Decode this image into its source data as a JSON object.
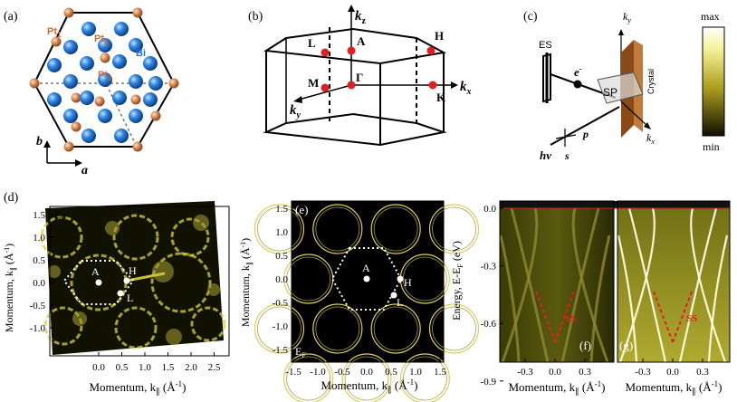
{
  "figure": {
    "panel_a": {
      "label": "(a)",
      "pt1": "Pt",
      "pt1_sub": "1",
      "pt2": "Pt",
      "pt2_sub": "2",
      "pt3": "Pt",
      "pt3_sub": "3",
      "bi": "Bi",
      "axis_b": "b",
      "axis_a": "a"
    },
    "panel_b": {
      "label": "(b)",
      "kz": "k",
      "kz_sub": "z",
      "kx": "k",
      "kx_sub": "x",
      "ky": "k",
      "ky_sub": "y",
      "points": [
        "L",
        "A",
        "H",
        "M",
        "Γ",
        "K"
      ]
    },
    "panel_c": {
      "label": "(c)",
      "es": "ES",
      "electron": "e",
      "electron_sup": "-",
      "sp": "SP",
      "crystal": "Crystal",
      "ky": "k",
      "ky_sub": "y",
      "kx": "k",
      "kx_sub": "x",
      "hv": "hν",
      "p": "p",
      "s": "s",
      "colorbar_max": "max",
      "colorbar_min": "min"
    },
    "panel_d": {
      "label": "(d)",
      "ef": "E",
      "ef_sub": "F",
      "ylabel": "Momentum, k",
      "ylabel_unit": "(Å",
      "xlabel": "Momentum, k",
      "xlabel_unit": "(Å",
      "yticks": [
        "1.5",
        "1.0",
        "0.5",
        "0.0",
        "-0.5",
        "-1.0"
      ],
      "xticks": [
        "0.0",
        "0.5",
        "1.0",
        "1.5",
        "2.0",
        "2.5"
      ],
      "points": [
        "A",
        "H",
        "L"
      ]
    },
    "panel_e": {
      "label": "(e)",
      "ef": "E",
      "ef_sub": "F",
      "ylabel": "Momentum, k",
      "ylabel_unit": "(Å",
      "xlabel": "Momentum, k",
      "xlabel_unit": "(Å",
      "yticks": [
        "1.5",
        "1.0",
        "0.5",
        "0.0",
        "-0.5",
        "-1.0",
        "-1.5"
      ],
      "xticks": [
        "-1.5",
        "-1.0",
        "-0.5",
        "0.0",
        "0.5",
        "1.0",
        "1.5"
      ],
      "points": [
        "A",
        "H",
        "L"
      ]
    },
    "panel_fg": {
      "label_f": "(f)",
      "label_g": "(g)",
      "ylabel": "Energy, E-E",
      "ylabel_sub": "F",
      "ylabel_unit": "(eV)",
      "xlabel": "Momentum, k",
      "xlabel_unit": "(Å",
      "yticks": [
        "0.0",
        "-0.3",
        "-0.6",
        "-0.9"
      ],
      "xticks_f": [
        "-0.3",
        "0.0",
        "0.3"
      ],
      "xticks_g": [
        "-0.3",
        "0.0",
        "0.3"
      ],
      "ss_f": "SS",
      "ss_g": "SS"
    }
  },
  "colors": {
    "pt": "#c8703c",
    "bi": "#1f6fcf",
    "highsym": "#e02020",
    "map_bright": "#f4f06a",
    "map_dark": "#0b0b00",
    "crystal": "#b5651d"
  }
}
